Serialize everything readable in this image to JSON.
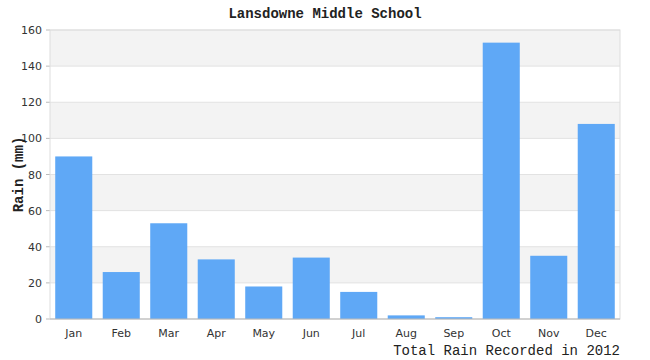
{
  "chart_data": {
    "type": "bar",
    "title": "Lansdowne Middle School",
    "x_label": "Total Rain Recorded in 2012",
    "y_label": "Rain (mm)",
    "categories": [
      "Jan",
      "Feb",
      "Mar",
      "Apr",
      "May",
      "Jun",
      "Jul",
      "Aug",
      "Sep",
      "Oct",
      "Nov",
      "Dec"
    ],
    "values": [
      90,
      26,
      53,
      33,
      18,
      34,
      15,
      2,
      1,
      153,
      35,
      108
    ],
    "color": "#5fa8f6",
    "ylim": [
      0,
      160
    ],
    "yticks": [
      0,
      20,
      40,
      60,
      80,
      100,
      120,
      140,
      160
    ],
    "grid": true
  }
}
